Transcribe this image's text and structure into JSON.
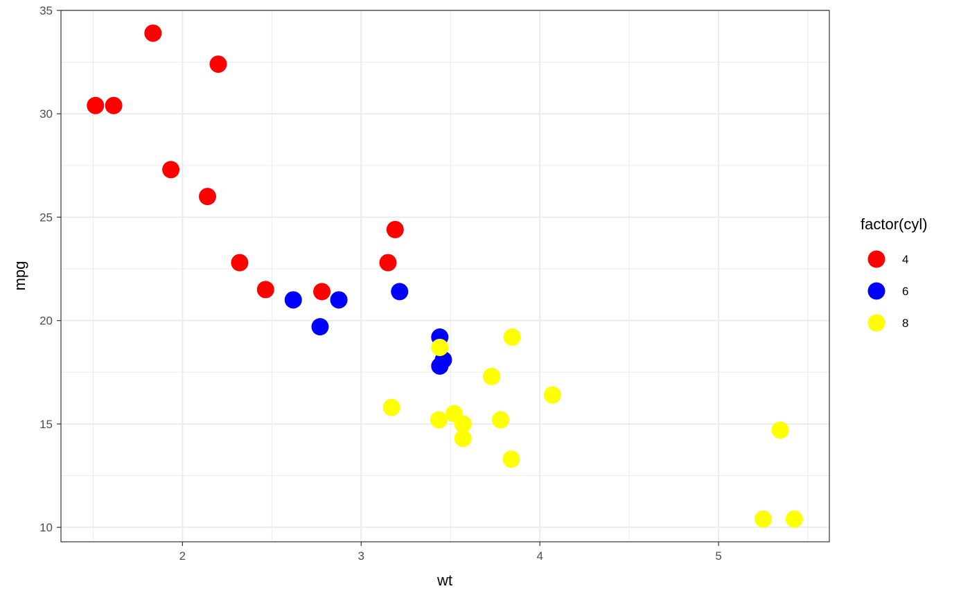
{
  "chart_data": {
    "type": "scatter",
    "title": "",
    "xlabel": "wt",
    "ylabel": "mpg",
    "xlim": [
      1.32,
      5.62
    ],
    "ylim": [
      9.3,
      35.0
    ],
    "x_ticks": [
      2,
      3,
      4,
      5
    ],
    "y_ticks": [
      10,
      15,
      20,
      25,
      30,
      35
    ],
    "x_minor": [
      1.5,
      2.5,
      3.5,
      4.5,
      5.5
    ],
    "y_minor": [
      12.5,
      17.5,
      22.5,
      27.5,
      32.5
    ],
    "grid": true,
    "legend": {
      "title": "factor(cyl)",
      "position": "right",
      "entries": [
        {
          "label": "4",
          "color": "#FF0000"
        },
        {
          "label": "6",
          "color": "#0000FF"
        },
        {
          "label": "8",
          "color": "#FFFF00"
        }
      ]
    },
    "series": [
      {
        "name": "4",
        "color": "#FF0000",
        "points": [
          [
            2.32,
            22.8
          ],
          [
            3.19,
            24.4
          ],
          [
            3.15,
            22.8
          ],
          [
            2.2,
            32.4
          ],
          [
            1.615,
            30.4
          ],
          [
            1.835,
            33.9
          ],
          [
            2.465,
            21.5
          ],
          [
            1.935,
            27.3
          ],
          [
            2.14,
            26.0
          ],
          [
            1.513,
            30.4
          ],
          [
            2.78,
            21.4
          ]
        ]
      },
      {
        "name": "6",
        "color": "#0000FF",
        "points": [
          [
            2.62,
            21.0
          ],
          [
            2.875,
            21.0
          ],
          [
            3.215,
            21.4
          ],
          [
            3.46,
            18.1
          ],
          [
            3.44,
            19.2
          ],
          [
            3.44,
            17.8
          ],
          [
            2.77,
            19.7
          ]
        ]
      },
      {
        "name": "8",
        "color": "#FFFF00",
        "points": [
          [
            3.44,
            18.7
          ],
          [
            3.57,
            14.3
          ],
          [
            4.07,
            16.4
          ],
          [
            3.73,
            17.3
          ],
          [
            3.78,
            15.2
          ],
          [
            5.25,
            10.4
          ],
          [
            5.424,
            10.4
          ],
          [
            5.345,
            14.7
          ],
          [
            3.52,
            15.5
          ],
          [
            3.435,
            15.2
          ],
          [
            3.84,
            13.3
          ],
          [
            3.845,
            19.2
          ],
          [
            3.17,
            15.8
          ],
          [
            3.57,
            15.0
          ]
        ]
      }
    ]
  }
}
